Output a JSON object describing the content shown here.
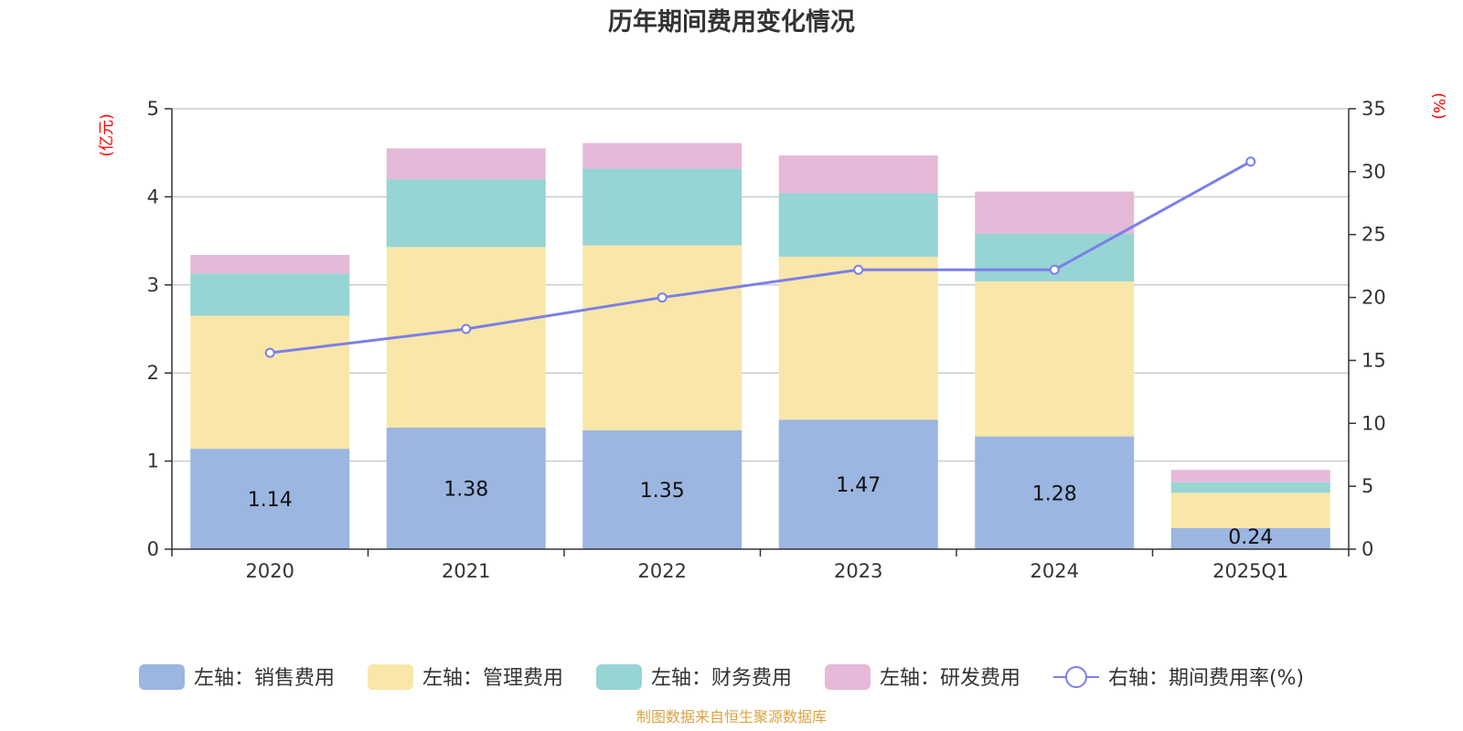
{
  "chart_data": {
    "type": "bar",
    "title": "历年期间费用变化情况",
    "categories": [
      "2020",
      "2021",
      "2022",
      "2023",
      "2024",
      "2025Q1"
    ],
    "left_axis": {
      "unit": "(亿元)",
      "ylim": [
        0,
        5
      ],
      "ticks": [
        "0",
        "1",
        "2",
        "3",
        "4",
        "5"
      ]
    },
    "right_axis": {
      "unit": "(%)",
      "ylim": [
        0,
        35
      ],
      "ticks": [
        "0",
        "5",
        "10",
        "15",
        "20",
        "25",
        "30",
        "35"
      ]
    },
    "series": [
      {
        "name": "左轴：销售费用",
        "kind": "bar",
        "color": "#9bb6e0",
        "values": [
          1.14,
          1.38,
          1.35,
          1.47,
          1.28,
          0.24
        ],
        "labels": [
          "1.14",
          "1.38",
          "1.35",
          "1.47",
          "1.28",
          "0.24"
        ]
      },
      {
        "name": "左轴：管理费用",
        "kind": "bar",
        "color": "#f8e7a8",
        "values": [
          1.51,
          2.05,
          2.1,
          1.85,
          1.76,
          0.4
        ]
      },
      {
        "name": "左轴：财务费用",
        "kind": "bar",
        "color": "#97d4d4",
        "values": [
          0.48,
          0.77,
          0.87,
          0.72,
          0.54,
          0.12
        ]
      },
      {
        "name": "左轴：研发费用",
        "kind": "bar",
        "color": "#e6b9d8",
        "values": [
          0.21,
          0.35,
          0.29,
          0.43,
          0.48,
          0.14
        ]
      },
      {
        "name": "右轴：期间费用率(%)",
        "kind": "line",
        "color": "#7b7fe8",
        "values": [
          15.6,
          17.5,
          20.0,
          22.2,
          22.2,
          30.8
        ]
      }
    ],
    "unit_color": "#ff0000",
    "grid": true,
    "legend_position": "bottom-center"
  },
  "footer": {
    "source": "制图数据来自恒生聚源数据库",
    "color": "#d9a441"
  }
}
